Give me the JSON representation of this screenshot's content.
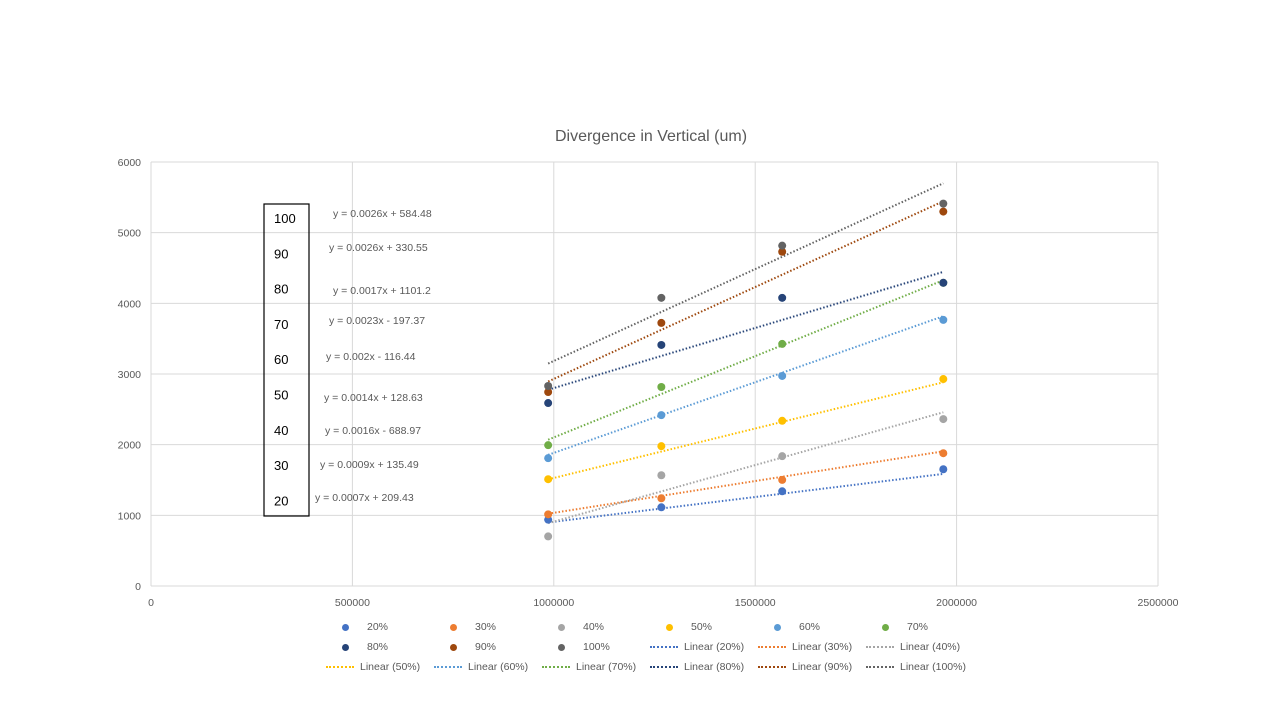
{
  "chart_data": {
    "type": "scatter",
    "title": "Divergence in Vertical (um)",
    "xlabel": "",
    "ylabel": "",
    "xlim": [
      0,
      2500000
    ],
    "ylim": [
      0,
      6000
    ],
    "xticks": [
      "0",
      "500000",
      "1000000",
      "1500000",
      "2000000",
      "2500000"
    ],
    "yticks": [
      "0",
      "1000",
      "2000",
      "3000",
      "4000",
      "5000",
      "6000"
    ],
    "grid": true,
    "legend_position": "bottom",
    "x": [
      986000,
      1267000,
      1567000,
      1967000
    ],
    "series": [
      {
        "name": "20%",
        "color": "#4472C4",
        "values": [
          939,
          1114,
          1340,
          1652
        ],
        "trend_label": "Linear (20%)",
        "equation": "y = 0.0007x + 209.43",
        "slope": 0.0007,
        "intercept": 209.43
      },
      {
        "name": "30%",
        "color": "#ED7D31",
        "values": [
          1014,
          1241,
          1501,
          1879
        ],
        "trend_label": "Linear (30%)",
        "equation": "y = 0.0009x + 135.49",
        "slope": 0.0009,
        "intercept": 135.49
      },
      {
        "name": "40%",
        "color": "#A5A5A5",
        "values": [
          702,
          1567,
          1837,
          2362
        ],
        "trend_label": "Linear (40%)",
        "equation": "y = 0.0016x - 688.97",
        "slope": 0.0016,
        "intercept": -688.97
      },
      {
        "name": "50%",
        "color": "#FFC000",
        "values": [
          1511,
          1979,
          2338,
          2929
        ],
        "trend_label": "Linear (50%)",
        "equation": "y = 0.0014x + 128.63",
        "slope": 0.0014,
        "intercept": 128.63
      },
      {
        "name": "60%",
        "color": "#5B9BD5",
        "values": [
          1809,
          2418,
          2972,
          3766
        ],
        "trend_label": "Linear (60%)",
        "equation": "y = 0.002x - 116.44",
        "slope": 0.002,
        "intercept": -116.44
      },
      {
        "name": "70%",
        "color": "#70AD47",
        "values": [
          1993,
          2816,
          3426,
          4290
        ],
        "trend_label": "Linear (70%)",
        "equation": "y = 0.0023x - 197.37",
        "slope": 0.0023,
        "intercept": -197.37
      },
      {
        "name": "80%",
        "color": "#264478",
        "values": [
          2589,
          3411,
          4078,
          4291
        ],
        "trend_label": "Linear (80%)",
        "equation": "y = 0.0017x + 1101.2",
        "slope": 0.0017,
        "intercept": 1101.2
      },
      {
        "name": "90%",
        "color": "#9E480E",
        "values": [
          2745,
          3723,
          4730,
          5298
        ],
        "trend_label": "Linear (90%)",
        "equation": "y = 0.0026x + 330.55",
        "slope": 0.0026,
        "intercept": 330.55
      },
      {
        "name": "100%",
        "color": "#636363",
        "values": [
          2830,
          4078,
          4816,
          5411
        ],
        "trend_label": "Linear (100%)",
        "equation": "y = 0.0026x + 584.48",
        "slope": 0.0026,
        "intercept": 584.48
      }
    ],
    "annotation_box": [
      "100",
      "90",
      "80",
      "70",
      "60",
      "50",
      "40",
      "30",
      "20"
    ]
  }
}
